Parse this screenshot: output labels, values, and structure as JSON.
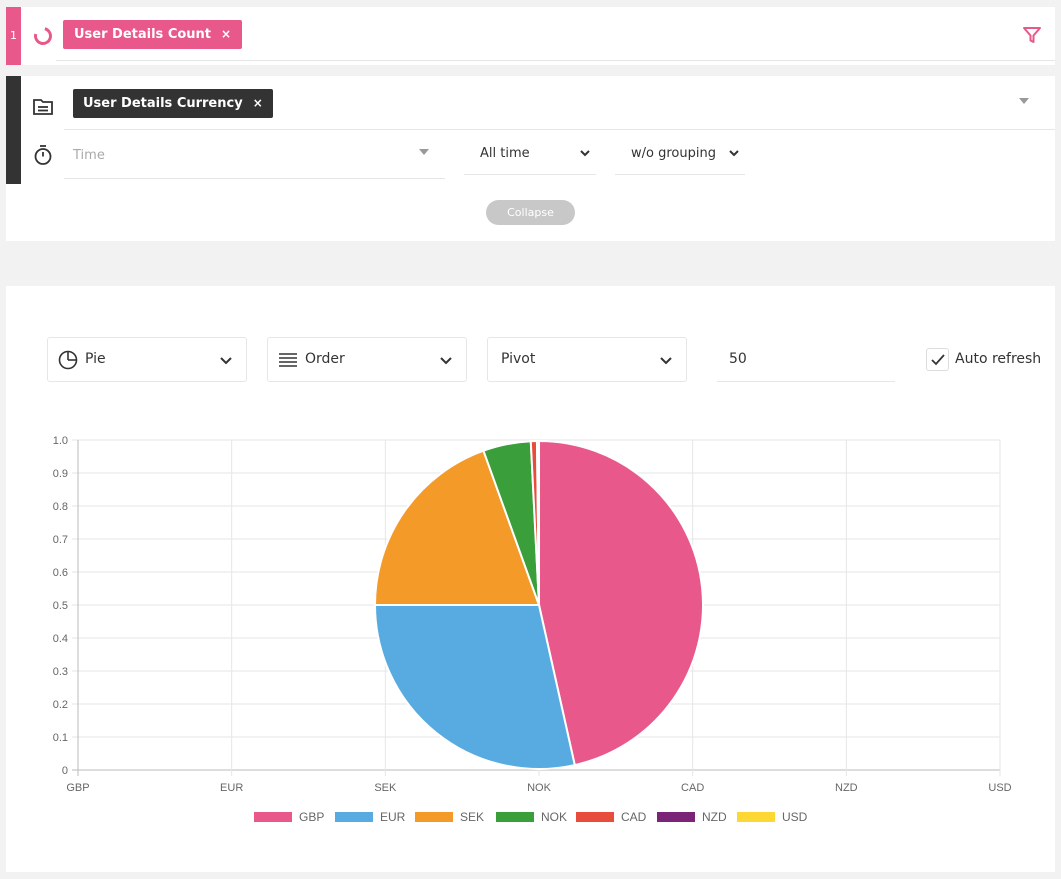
{
  "query1": {
    "index": "1",
    "chip_label": "User Details Count",
    "chip_close": "×",
    "colors": {
      "accent": "#e8588a"
    }
  },
  "query2": {
    "chip_label": "User Details Currency",
    "chip_close": "×",
    "time_placeholder": "Time",
    "range_value": "All time",
    "grouping_value": "w/o grouping",
    "collapse_label": "Collapse"
  },
  "toolbar": {
    "chart_type": "Pie",
    "order": "Order",
    "pivot": "Pivot",
    "limit": "50",
    "auto_refresh_label": "Auto refresh",
    "auto_refresh_checked": true
  },
  "chart_data": {
    "type": "pie",
    "categories": [
      "GBP",
      "EUR",
      "SEK",
      "NOK",
      "CAD",
      "NZD",
      "USD"
    ],
    "values": [
      46.5,
      28.5,
      19.5,
      4.7,
      0.6,
      0.2,
      0.0
    ],
    "colors": [
      "#e8588a",
      "#58abe0",
      "#f39a28",
      "#3a9e3a",
      "#e74c3c",
      "#7b2377",
      "#fdd835"
    ],
    "y_ticks": [
      "0",
      "0.1",
      "0.2",
      "0.3",
      "0.4",
      "0.5",
      "0.6",
      "0.7",
      "0.8",
      "0.9",
      "1.0"
    ],
    "ylim": [
      0,
      1
    ],
    "grid": true,
    "legend_position": "bottom"
  }
}
